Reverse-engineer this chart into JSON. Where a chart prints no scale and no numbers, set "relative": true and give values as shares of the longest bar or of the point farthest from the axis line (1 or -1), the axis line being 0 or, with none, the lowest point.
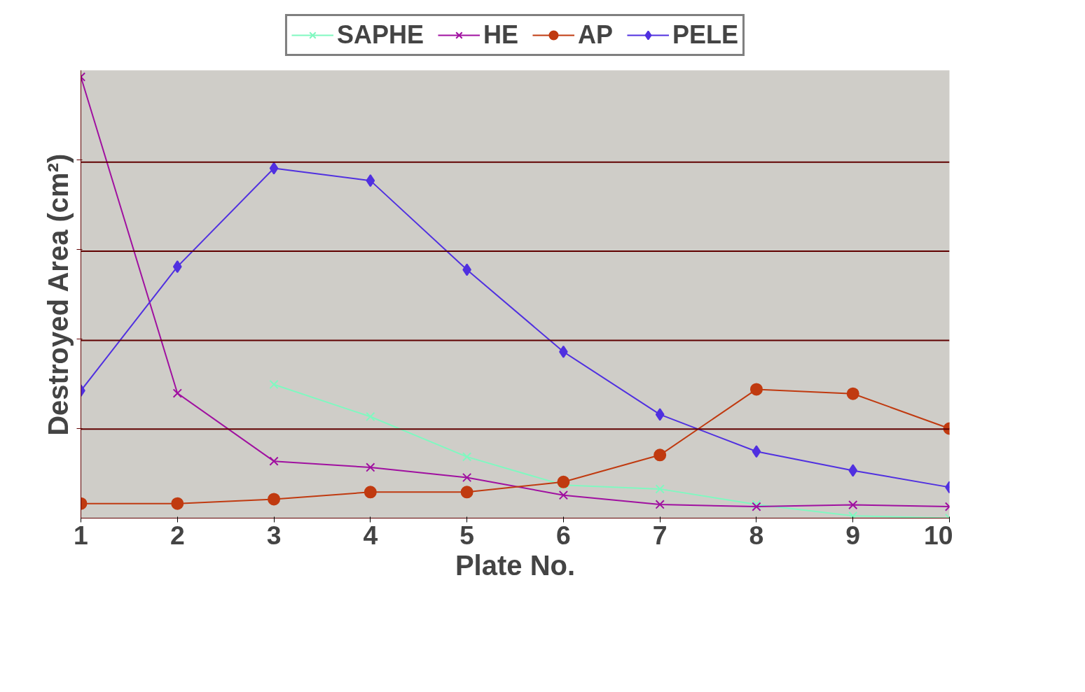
{
  "chart_data": {
    "type": "line",
    "xlabel": "Plate No.",
    "ylabel": "Destroyed Area (cm²)",
    "relative": true,
    "x": [
      1,
      2,
      3,
      4,
      5,
      6,
      7,
      8,
      9,
      10
    ],
    "xlim": [
      1,
      10
    ],
    "xticks": [
      1,
      2,
      3,
      4,
      5,
      6,
      7,
      8,
      9,
      10
    ],
    "legend": "top",
    "ref_lines": [
      {
        "axis": "y",
        "value": 0.202,
        "color": "#600000"
      },
      {
        "axis": "y",
        "value": 0.403,
        "color": "#600000"
      },
      {
        "axis": "y",
        "value": 0.605,
        "color": "#600000"
      },
      {
        "axis": "y",
        "value": 0.807,
        "color": "#600000"
      }
    ],
    "series": [
      {
        "name": "SAPHE",
        "color": "#80f8c0",
        "marker": "cross",
        "values": [
          null,
          null,
          0.303,
          0.23,
          0.139,
          0.075,
          0.066,
          0.031,
          0.005,
          0
        ]
      },
      {
        "name": "HE",
        "color": "#a010a0",
        "marker": "cross",
        "values": [
          1.0,
          0.283,
          0.129,
          0.115,
          0.092,
          0.052,
          0.031,
          0.026,
          0.03,
          0.026
        ]
      },
      {
        "name": "AP",
        "color": "#c03a10",
        "marker": "circle",
        "values": [
          0.033,
          0.033,
          0.043,
          0.059,
          0.059,
          0.082,
          0.143,
          0.292,
          0.282,
          0.203
        ]
      },
      {
        "name": "PELE",
        "color": "#5030e0",
        "marker": "diamond",
        "values": [
          0.289,
          0.57,
          0.793,
          0.765,
          0.563,
          0.377,
          0.235,
          0.151,
          0.108,
          0.07
        ]
      }
    ]
  }
}
